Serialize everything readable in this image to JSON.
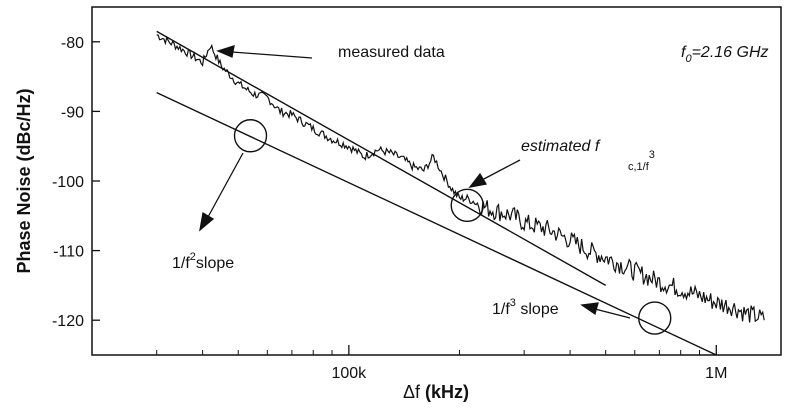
{
  "chart_data": {
    "type": "line",
    "title": "",
    "xlabel_prefix": "Δf",
    "xlabel_text": "(kHz)",
    "ylabel": "Phase Noise (dBc/Hz)",
    "x_scale": "log",
    "xlim": [
      20,
      1500
    ],
    "ylim": [
      -125,
      -75
    ],
    "x_ticks": [
      {
        "value": 100,
        "label": "100k"
      },
      {
        "value": 1000,
        "label": "1M"
      }
    ],
    "y_ticks": [
      -80,
      -90,
      -100,
      -110,
      -120
    ],
    "grid": false,
    "series": [
      {
        "name": "measured data",
        "style": "noisy",
        "x": [
          30,
          35,
          40,
          42,
          45,
          50,
          55,
          60,
          65,
          70,
          80,
          90,
          100,
          110,
          120,
          130,
          140,
          150,
          160,
          170,
          180,
          190,
          200,
          210,
          220,
          240,
          260,
          280,
          300,
          350,
          400,
          450,
          500,
          550,
          600,
          700,
          800,
          900,
          1000,
          1100,
          1200,
          1300,
          1350
        ],
        "y": [
          -79,
          -81,
          -83,
          -80.5,
          -83.5,
          -86,
          -87.5,
          -88,
          -90,
          -90.5,
          -92.5,
          -94,
          -95,
          -96.5,
          -95.5,
          -96,
          -96.8,
          -98,
          -98.5,
          -96.5,
          -99,
          -101,
          -102.5,
          -102.5,
          -103,
          -104,
          -104.5,
          -105,
          -106,
          -107,
          -108.5,
          -110,
          -111,
          -112,
          -113,
          -114.5,
          -115.5,
          -116.5,
          -117.5,
          -118,
          -119,
          -119.5,
          -120
        ]
      },
      {
        "name": "1/f3 slope",
        "style": "fit",
        "x": [
          30,
          500
        ],
        "y": [
          -78.5,
          -115
        ]
      },
      {
        "name": "1/f2 slope",
        "style": "fit",
        "x": [
          30,
          1000
        ],
        "y": [
          -87.3,
          -125
        ]
      }
    ],
    "annotations": {
      "measured_label": "measured data",
      "f0_label": "f",
      "f0_sub": "0",
      "f0_value": "=2.16 GHz",
      "estimated_label": "estimated f",
      "estimated_sub": "c,1/f",
      "estimated_sup": "3",
      "slope2_prefix": "1/f",
      "slope2_sup": "2",
      "slope2_suffix": "slope",
      "slope3_prefix": "1/f",
      "slope3_sup": "3",
      "slope3_suffix": " slope"
    },
    "circles": [
      {
        "name": "circle-1f2",
        "x": 54,
        "y": -93.5
      },
      {
        "name": "circle-corner",
        "x": 210,
        "y": -103.5
      },
      {
        "name": "circle-1f3",
        "x": 680,
        "y": -119.7
      }
    ]
  }
}
